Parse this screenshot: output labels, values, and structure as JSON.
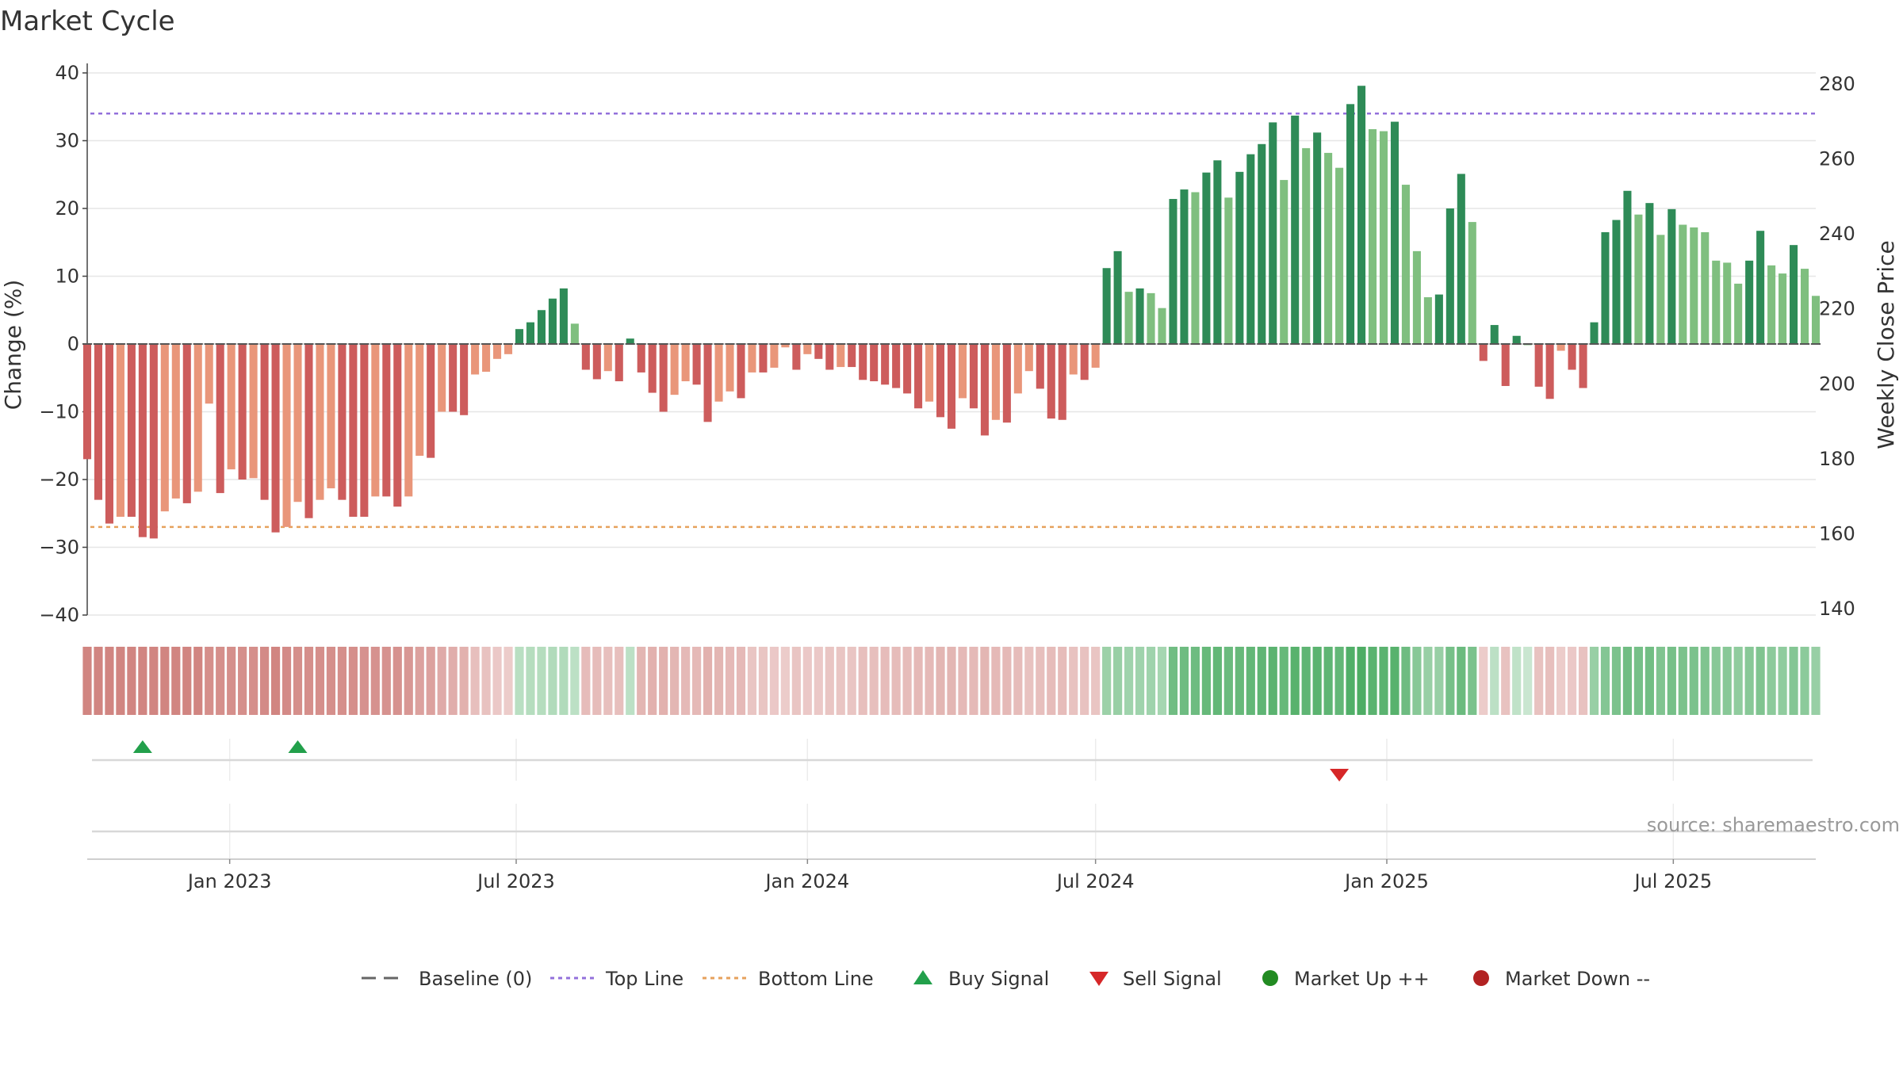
{
  "title": "Market Cycle",
  "source_text": "source: sharemaestro.com",
  "colors": {
    "strong_up": "#2e8b57",
    "up": "#7fbf7f",
    "strong_down": "#cd5c5c",
    "down": "#e9967a",
    "top_line": "#9370db",
    "bottom_line": "#e6a15c",
    "baseline": "#666666",
    "buy": "#22a04b",
    "sell": "#d62728",
    "market_up": "#228b22",
    "market_down": "#b22222"
  },
  "legend": [
    {
      "key": "baseline",
      "label": "Baseline (0)",
      "symbol": "dash-gray"
    },
    {
      "key": "top",
      "label": "Top Line",
      "symbol": "dot-purple"
    },
    {
      "key": "bottom",
      "label": "Bottom Line",
      "symbol": "dot-orange"
    },
    {
      "key": "buy",
      "label": "Buy Signal",
      "symbol": "triangle-up"
    },
    {
      "key": "sell",
      "label": "Sell Signal",
      "symbol": "triangle-down"
    },
    {
      "key": "market_up",
      "label": "Market Up ++",
      "symbol": "circle-green"
    },
    {
      "key": "market_down",
      "label": "Market Down --",
      "symbol": "circle-red"
    }
  ],
  "chart_data": {
    "type": "bar",
    "ylabel": "Change (%)",
    "y2label": "Weekly Close Price",
    "ylim": [
      -40,
      40
    ],
    "y2lim": [
      140,
      280
    ],
    "yticks": [
      "40",
      "30",
      "20",
      "10",
      "0",
      "−10",
      "−20",
      "−30",
      "−40"
    ],
    "y2ticks": [
      "280",
      "260",
      "240",
      "220",
      "200",
      "180",
      "160",
      "140"
    ],
    "xticks": [
      "Jan 2023",
      "Jul 2023",
      "Jan 2024",
      "Jul 2024",
      "Jan 2025",
      "Jul 2025"
    ],
    "top_line": 34,
    "bottom_line": -27,
    "baseline": 0,
    "grid": true,
    "legend_position": "bottom",
    "start": "2022-10-03",
    "weeks": 157,
    "values": [
      -17,
      -23,
      -26.5,
      -25.5,
      -25.5,
      -28.5,
      -28.7,
      -24.7,
      -22.8,
      -23.5,
      -21.8,
      -8.8,
      -22,
      -18.5,
      -20,
      -19.8,
      -23,
      -27.8,
      -27,
      -23.3,
      -25.7,
      -23,
      -21.3,
      -23,
      -25.5,
      -25.5,
      -22.5,
      -22.5,
      -24,
      -22.5,
      -16.5,
      -16.8,
      -10,
      -10,
      -10.5,
      -4.5,
      -4.1,
      -2.2,
      -1.5,
      2.2,
      3.2,
      5,
      6.7,
      8.2,
      3,
      -3.8,
      -5.2,
      -4,
      -5.5,
      0.8,
      -4.2,
      -7.2,
      -10,
      -7.5,
      -5.5,
      -6,
      -11.5,
      -8.5,
      -7,
      -8,
      -4.2,
      -4.2,
      -3.5,
      -0.5,
      -3.8,
      -1.5,
      -2.2,
      -3.8,
      -3.4,
      -3.4,
      -5.3,
      -5.5,
      -6,
      -6.5,
      -7.3,
      -9.5,
      -8.5,
      -10.8,
      -12.5,
      -8,
      -9.5,
      -13.5,
      -11.2,
      -11.6,
      -7.3,
      -4,
      -6.6,
      -11,
      -11.2,
      -4.5,
      -5.3,
      -3.5,
      11.2,
      13.7,
      7.7,
      8.2,
      7.5,
      5.3,
      21.4,
      22.8,
      22.4,
      25.3,
      27.1,
      21.6,
      25.4,
      28,
      29.5,
      32.7,
      24.2,
      33.7,
      28.9,
      31.2,
      28.2,
      26,
      35.4,
      38.1,
      31.7,
      31.4,
      32.8,
      23.5,
      13.7,
      6.9,
      7.3,
      20,
      25.1,
      18,
      -2.5,
      2.8,
      -6.2,
      1.2,
      0,
      -6.3,
      -8.1,
      -1,
      -3.8,
      -6.5,
      3.2,
      16.5,
      18.3,
      22.6,
      19.1,
      20.8,
      16.1,
      19.9,
      17.6,
      17.2,
      16.5,
      12.3,
      12,
      8.9,
      12.3,
      16.7,
      11.6,
      10.4,
      14.6,
      11.1,
      7.1
    ],
    "strength_values": [
      -0.58,
      -0.58,
      -0.58,
      -0.58,
      -0.58,
      -0.58,
      -0.58,
      -0.58,
      -0.58,
      -0.58,
      -0.58,
      -0.52,
      -0.52,
      -0.52,
      -0.52,
      -0.52,
      -0.55,
      -0.58,
      -0.55,
      -0.52,
      -0.52,
      -0.52,
      -0.52,
      -0.52,
      -0.52,
      -0.5,
      -0.5,
      -0.5,
      -0.5,
      -0.48,
      -0.42,
      -0.42,
      -0.36,
      -0.34,
      -0.32,
      -0.24,
      -0.22,
      -0.18,
      -0.16,
      0.2,
      0.22,
      0.22,
      0.24,
      0.24,
      0.18,
      -0.26,
      -0.26,
      -0.24,
      -0.24,
      0.18,
      -0.3,
      -0.32,
      -0.32,
      -0.3,
      -0.28,
      -0.28,
      -0.32,
      -0.3,
      -0.28,
      -0.28,
      -0.2,
      -0.2,
      -0.18,
      -0.16,
      -0.2,
      -0.18,
      -0.18,
      -0.2,
      -0.2,
      -0.2,
      -0.24,
      -0.24,
      -0.26,
      -0.26,
      -0.26,
      -0.28,
      -0.28,
      -0.3,
      -0.3,
      -0.28,
      -0.28,
      -0.3,
      -0.28,
      -0.28,
      -0.26,
      -0.22,
      -0.24,
      -0.26,
      -0.26,
      -0.22,
      -0.22,
      -0.2,
      0.34,
      0.36,
      0.32,
      0.32,
      0.32,
      0.3,
      0.55,
      0.56,
      0.56,
      0.6,
      0.62,
      0.58,
      0.6,
      0.62,
      0.64,
      0.66,
      0.6,
      0.68,
      0.64,
      0.66,
      0.64,
      0.62,
      0.7,
      0.72,
      0.66,
      0.66,
      0.68,
      0.56,
      0.44,
      0.36,
      0.36,
      0.52,
      0.58,
      0.5,
      -0.16,
      0.18,
      -0.22,
      0.16,
      0.12,
      -0.22,
      -0.24,
      -0.16,
      -0.18,
      -0.22,
      0.36,
      0.46,
      0.5,
      0.55,
      0.52,
      0.54,
      0.48,
      0.52,
      0.5,
      0.5,
      0.48,
      0.44,
      0.44,
      0.4,
      0.44,
      0.48,
      0.42,
      0.4,
      0.46,
      0.42,
      0.36
    ],
    "buy_signals": [
      "2022-11-07",
      "2023-02-13"
    ],
    "sell_signals": [
      "2024-12-02"
    ],
    "market_up": [],
    "market_down": []
  }
}
